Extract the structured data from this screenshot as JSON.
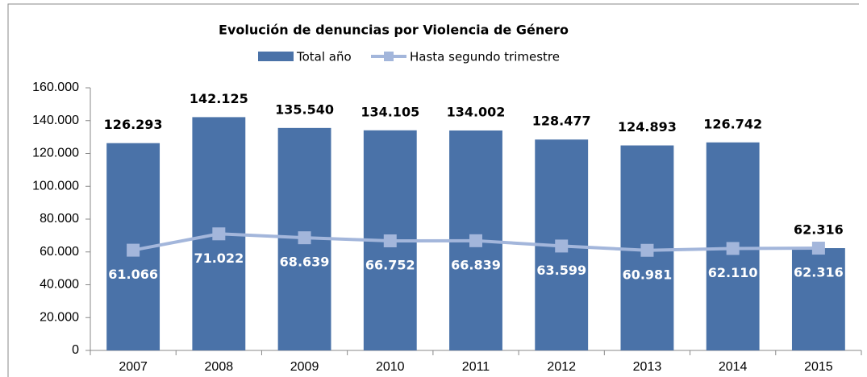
{
  "chart_data": {
    "type": "bar_line",
    "title": "Evolución de denuncias por Violencia de Género",
    "categories": [
      "2007",
      "2008",
      "2009",
      "2010",
      "2011",
      "2012",
      "2013",
      "2014",
      "2015"
    ],
    "series": [
      {
        "name": "Total año",
        "color": "#4a72a8",
        "type": "bar",
        "values": [
          126293,
          142125,
          135540,
          134105,
          134002,
          128477,
          124893,
          126742,
          62316
        ],
        "value_labels": [
          "126.293",
          "142.125",
          "135.540",
          "134.105",
          "134.002",
          "128.477",
          "124.893",
          "126.742",
          "62.316"
        ]
      },
      {
        "name": "Hasta segundo trimestre",
        "color": "#a3b6db",
        "type": "line",
        "values": [
          61066,
          71022,
          68639,
          66752,
          66839,
          63599,
          60981,
          62110,
          62316
        ],
        "value_labels": [
          "61.066",
          "71.022",
          "68.639",
          "66.752",
          "66.839",
          "63.599",
          "60.981",
          "62.110",
          "62.316"
        ]
      }
    ],
    "ylim": [
      0,
      160000
    ],
    "yticks": [
      {
        "value": 0,
        "label": "0"
      },
      {
        "value": 20000,
        "label": "20.000"
      },
      {
        "value": 40000,
        "label": "40.000"
      },
      {
        "value": 60000,
        "label": "60.000"
      },
      {
        "value": 80000,
        "label": "80.000"
      },
      {
        "value": 100000,
        "label": "100.000"
      },
      {
        "value": 120000,
        "label": "120.000"
      },
      {
        "value": 140000,
        "label": "140.000"
      },
      {
        "value": 160000,
        "label": "160.000"
      }
    ],
    "grid": false,
    "legend": "top"
  }
}
